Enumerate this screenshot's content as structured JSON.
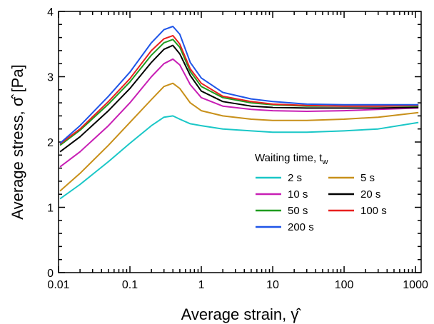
{
  "chart_data": {
    "type": "line",
    "xscale": "log",
    "xlim": [
      0.01,
      1200
    ],
    "ylim": [
      0,
      4
    ],
    "xlabel": "Average strain, γ̂",
    "ylabel": "Average stress, σ̂  [Pa]",
    "xtick_labels": [
      "0.01",
      "0.1",
      "1",
      "10",
      "100",
      "1000"
    ],
    "xtick_values": [
      0.01,
      0.1,
      1,
      10,
      100,
      1000
    ],
    "ytick_labels": [
      "0",
      "1",
      "2",
      "3",
      "4"
    ],
    "ytick_values": [
      0,
      1,
      2,
      3,
      4
    ],
    "grid": false,
    "legend": {
      "title": "Waiting time, t",
      "title_subscript": "w",
      "placement": "center-right"
    },
    "series": [
      {
        "name": "2 s",
        "color": "#1ac7c7",
        "x": [
          0.0105,
          0.02,
          0.05,
          0.1,
          0.2,
          0.3,
          0.4,
          0.5,
          0.7,
          1,
          2,
          5,
          10,
          30,
          100,
          300,
          1100
        ],
        "y": [
          1.13,
          1.35,
          1.7,
          1.98,
          2.25,
          2.38,
          2.4,
          2.35,
          2.28,
          2.25,
          2.2,
          2.17,
          2.15,
          2.15,
          2.17,
          2.2,
          2.3
        ]
      },
      {
        "name": "5 s",
        "color": "#c8901a",
        "x": [
          0.0105,
          0.02,
          0.05,
          0.1,
          0.2,
          0.3,
          0.4,
          0.5,
          0.7,
          1,
          2,
          5,
          10,
          30,
          100,
          300,
          1100
        ],
        "y": [
          1.25,
          1.52,
          1.95,
          2.3,
          2.65,
          2.85,
          2.9,
          2.82,
          2.6,
          2.48,
          2.4,
          2.35,
          2.33,
          2.33,
          2.35,
          2.38,
          2.45
        ]
      },
      {
        "name": "10 s",
        "color": "#c81fb5",
        "x": [
          0.0105,
          0.02,
          0.05,
          0.1,
          0.2,
          0.3,
          0.4,
          0.5,
          0.7,
          1,
          2,
          5,
          10,
          30,
          100,
          300,
          1100
        ],
        "y": [
          1.62,
          1.85,
          2.25,
          2.6,
          3.0,
          3.2,
          3.27,
          3.18,
          2.88,
          2.68,
          2.55,
          2.5,
          2.48,
          2.47,
          2.48,
          2.5,
          2.52
        ]
      },
      {
        "name": "20 s",
        "color": "#000000",
        "x": [
          0.0105,
          0.02,
          0.05,
          0.1,
          0.2,
          0.3,
          0.4,
          0.5,
          0.7,
          1,
          2,
          5,
          10,
          30,
          100,
          300,
          1100
        ],
        "y": [
          1.85,
          2.08,
          2.48,
          2.82,
          3.22,
          3.42,
          3.48,
          3.35,
          3.02,
          2.78,
          2.62,
          2.55,
          2.53,
          2.52,
          2.52,
          2.52,
          2.53
        ]
      },
      {
        "name": "50 s",
        "color": "#1f9b1f",
        "x": [
          0.0105,
          0.02,
          0.05,
          0.1,
          0.2,
          0.3,
          0.4,
          0.5,
          0.7,
          1,
          2,
          5,
          10,
          30,
          100,
          300,
          1100
        ],
        "y": [
          1.95,
          2.18,
          2.58,
          2.92,
          3.33,
          3.52,
          3.57,
          3.45,
          3.08,
          2.85,
          2.68,
          2.6,
          2.57,
          2.55,
          2.55,
          2.55,
          2.55
        ]
      },
      {
        "name": "100 s",
        "color": "#e8201f",
        "x": [
          0.0105,
          0.02,
          0.05,
          0.1,
          0.2,
          0.3,
          0.4,
          0.5,
          0.7,
          1,
          2,
          5,
          10,
          30,
          100,
          300,
          1100
        ],
        "y": [
          1.97,
          2.2,
          2.62,
          2.97,
          3.4,
          3.58,
          3.63,
          3.5,
          3.12,
          2.9,
          2.7,
          2.62,
          2.58,
          2.56,
          2.55,
          2.55,
          2.56
        ]
      },
      {
        "name": "200 s",
        "color": "#1f55e8",
        "x": [
          0.0105,
          0.02,
          0.05,
          0.1,
          0.2,
          0.3,
          0.4,
          0.5,
          0.7,
          1,
          2,
          5,
          10,
          30,
          100,
          300,
          1100
        ],
        "y": [
          1.98,
          2.25,
          2.7,
          3.07,
          3.52,
          3.72,
          3.77,
          3.65,
          3.22,
          2.98,
          2.76,
          2.66,
          2.62,
          2.58,
          2.57,
          2.57,
          2.57
        ]
      }
    ]
  }
}
